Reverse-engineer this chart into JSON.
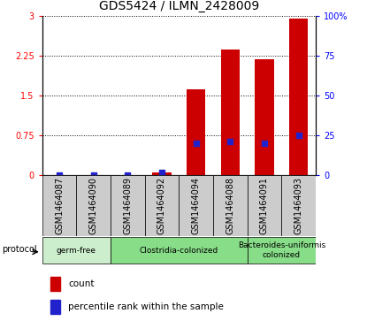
{
  "title": "GDS5424 / ILMN_2428009",
  "samples": [
    "GSM1464087",
    "GSM1464090",
    "GSM1464089",
    "GSM1464092",
    "GSM1464094",
    "GSM1464088",
    "GSM1464091",
    "GSM1464093"
  ],
  "counts": [
    0.0,
    0.0,
    0.0,
    0.05,
    1.62,
    2.37,
    2.18,
    2.95
  ],
  "percentile_ranks": [
    0.0,
    0.0,
    0.0,
    1.5,
    20.0,
    21.0,
    20.0,
    25.0
  ],
  "protocol_groups": [
    {
      "label": "germ-free",
      "start": 0,
      "end": 1,
      "color": "#c8f0c8"
    },
    {
      "label": "Clostridia-colonized",
      "start": 2,
      "end": 4,
      "color": "#90ee90"
    },
    {
      "label": "Bacteroides-uniformis\ncolonized",
      "start": 5,
      "end": 7,
      "color": "#90ee90"
    }
  ],
  "left_ylim": [
    0,
    3.0
  ],
  "left_yticks": [
    0,
    0.75,
    1.5,
    2.25,
    3.0
  ],
  "left_yticklabels": [
    "0",
    "0.75",
    "1.5",
    "2.25",
    "3"
  ],
  "right_ylim": [
    0,
    100
  ],
  "right_yticks": [
    0,
    25,
    50,
    75,
    100
  ],
  "right_yticklabels": [
    "0",
    "25",
    "50",
    "75",
    "100%"
  ],
  "bar_color": "#cc0000",
  "dot_color": "#2222cc",
  "legend_count_label": "count",
  "legend_percentile_label": "percentile rank within the sample",
  "protocol_label": "protocol",
  "title_fontsize": 10,
  "tick_fontsize": 7,
  "bar_width": 0.55,
  "sample_box_color": "#cccccc",
  "germ_free_color": "#cceecc",
  "colonized_color": "#88dd88"
}
